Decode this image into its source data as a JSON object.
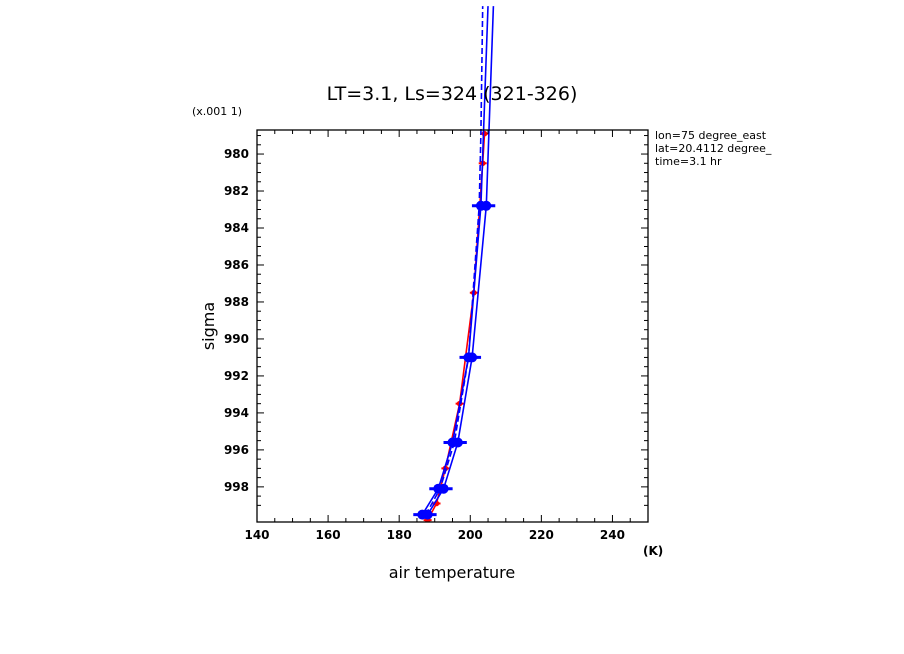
{
  "chart_data": {
    "type": "line",
    "title": "LT=3.1, Ls=324 (321-326)",
    "xlabel": "air temperature",
    "ylabel": "sigma",
    "x_unit": "(K)",
    "y_scale_note": "(x.001 1)",
    "xlim": [
      140,
      250
    ],
    "ylim": [
      999.9,
      978.7
    ],
    "x_ticks": [
      140,
      160,
      180,
      200,
      220,
      240
    ],
    "y_ticks": [
      980,
      982,
      984,
      986,
      988,
      990,
      992,
      994,
      996,
      998
    ],
    "annotations": [
      "lon=75 degree_east",
      "lat=20.4112 degree_",
      "time=3.1 hr"
    ],
    "series": [
      {
        "color": "#ff0000",
        "style": "solid",
        "marker": "small-dot",
        "points": [
          [
            188.0,
            999.8
          ],
          [
            190.5,
            998.9
          ],
          [
            193.0,
            997.0
          ],
          [
            197.0,
            993.5
          ],
          [
            201.0,
            987.5
          ],
          [
            203.5,
            980.5
          ],
          [
            204.0,
            978.9
          ]
        ]
      },
      {
        "color": "#0000ff",
        "style": "solid",
        "marker": "large-dot",
        "points": [
          [
            186.5,
            999.5
          ],
          [
            191.0,
            998.1
          ],
          [
            195.0,
            995.6
          ],
          [
            199.5,
            991.0
          ],
          [
            203.0,
            982.8
          ],
          [
            205.0,
            972.0
          ]
        ]
      },
      {
        "color": "#0000ff",
        "style": "solid",
        "marker": "large-dot",
        "points": [
          [
            188.0,
            999.5
          ],
          [
            192.5,
            998.1
          ],
          [
            196.5,
            995.6
          ],
          [
            200.5,
            991.0
          ],
          [
            204.5,
            982.8
          ],
          [
            206.5,
            972.0
          ]
        ]
      },
      {
        "color": "#0000ff",
        "style": "dashed",
        "marker": "none",
        "points": [
          [
            187.5,
            999.5
          ],
          [
            191.5,
            998.1
          ],
          [
            195.5,
            995.6
          ],
          [
            199.5,
            991.0
          ],
          [
            202.5,
            982.8
          ],
          [
            203.0,
            978.9
          ],
          [
            203.5,
            972.0
          ]
        ]
      }
    ]
  }
}
